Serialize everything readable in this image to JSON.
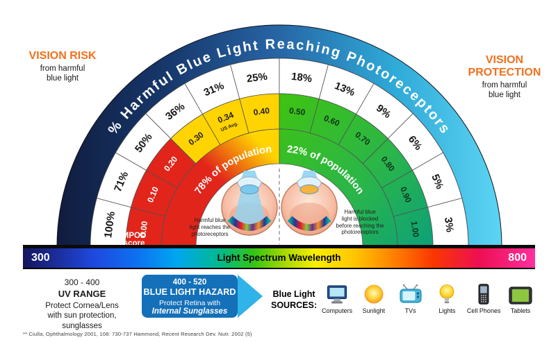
{
  "left_label": {
    "title": "VISION RISK",
    "subtitle": "from harmful\nblue light"
  },
  "right_label": {
    "title": "VISION PROTECTION",
    "subtitle": "from harmful\nblue light"
  },
  "chart_data": {
    "type": "gauge",
    "title": "% Harmful Blue Light Reaching Photoreceptors",
    "mpod_axis_label": "MPOD score",
    "segments": [
      {
        "percent": "100%",
        "mpod": "0.00",
        "zone": "red"
      },
      {
        "percent": "71%",
        "mpod": "0.10",
        "zone": "red"
      },
      {
        "percent": "50%",
        "mpod": "0.20",
        "zone": "red"
      },
      {
        "percent": "36%",
        "mpod": "0.30",
        "zone": "yellow"
      },
      {
        "percent": "31%",
        "mpod": "0.34",
        "note": "US Avg.",
        "zone": "yellow"
      },
      {
        "percent": "25%",
        "mpod": "0.40",
        "zone": "yellow"
      },
      {
        "percent": "18%",
        "mpod": "0.50",
        "zone": "green"
      },
      {
        "percent": "13%",
        "mpod": "0.60",
        "zone": "green"
      },
      {
        "percent": "9%",
        "mpod": "0.70",
        "zone": "green"
      },
      {
        "percent": "6%",
        "mpod": "0.80",
        "zone": "green"
      },
      {
        "percent": "5%",
        "mpod": "0.90",
        "zone": "green"
      },
      {
        "percent": "3%",
        "mpod": "1.00",
        "zone": "green"
      }
    ],
    "population": {
      "left": "78% of population",
      "right": "22% of population"
    },
    "colors": {
      "red": "#e1251b",
      "yellow": "#ffd400",
      "green_start": "#3fc311",
      "green_end": "#0a9f7c",
      "navy": "#101c3e",
      "cyan": "#5cd5f4"
    }
  },
  "eyes": {
    "left_caption": "Harmful blue\nlight reaches the\nphotoreceptors",
    "right_caption": "Harmful blue\nlight is blocked\nbefore reaching the\nphotoreceptors"
  },
  "spectrum": {
    "min": "300",
    "max": "800",
    "label": "Light Spectrum Wavelength"
  },
  "uv_range": {
    "range": "300 - 400",
    "title": "UV RANGE",
    "description": "Protect Cornea/Lens\nwith sun protection,\nsunglasses"
  },
  "blue_hazard": {
    "range": "400 - 520",
    "title": "BLUE LIGHT HAZARD",
    "line1": "Protect Retina with",
    "line2": "Internal Sunglasses"
  },
  "sources": {
    "label_line1": "Blue Light",
    "label_line2": "SOURCES:",
    "items": [
      {
        "name": "Computers",
        "icon": "computer-icon"
      },
      {
        "name": "Sunlight",
        "icon": "sun-icon"
      },
      {
        "name": "TVs",
        "icon": "tv-icon"
      },
      {
        "name": "Lights",
        "icon": "lightbulb-icon"
      },
      {
        "name": "Cell Phones",
        "icon": "cellphone-icon"
      },
      {
        "name": "Tablets",
        "icon": "tablet-icon"
      }
    ]
  },
  "footer": "** Ciulla, Ophthalmology 2001, 108: 730-737   Hammond, Recent Research Dev. Nutr. 2002 (5)"
}
